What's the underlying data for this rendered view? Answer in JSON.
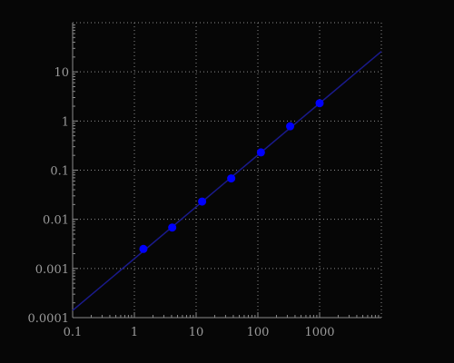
{
  "chart_data": {
    "type": "scatter",
    "title": "",
    "xlabel": "",
    "ylabel": "",
    "xscale": "log",
    "yscale": "log",
    "xlim": [
      0.1,
      10000
    ],
    "ylim": [
      0.0001,
      100
    ],
    "grid": true,
    "x_ticks": [
      {
        "value": 0.1,
        "label": "0.1"
      },
      {
        "value": 1,
        "label": "1"
      },
      {
        "value": 10,
        "label": "10"
      },
      {
        "value": 100,
        "label": "100"
      },
      {
        "value": 1000,
        "label": "1000"
      }
    ],
    "y_ticks": [
      {
        "value": 0.0001,
        "label": "0.0001"
      },
      {
        "value": 0.001,
        "label": "0.001"
      },
      {
        "value": 0.01,
        "label": "0.01"
      },
      {
        "value": 0.1,
        "label": "0.1"
      },
      {
        "value": 1,
        "label": "1"
      },
      {
        "value": 10,
        "label": "10"
      }
    ],
    "series": [
      {
        "type": "scatter",
        "color": "#0000ff",
        "x": [
          1.4,
          4.1,
          12.5,
          37,
          112,
          333,
          1000
        ],
        "y": [
          0.0025,
          0.0068,
          0.023,
          0.068,
          0.23,
          0.78,
          2.3
        ]
      },
      {
        "type": "line",
        "color": "#1a1a8c",
        "x": [
          0.1,
          10000
        ],
        "y": [
          0.00014,
          26
        ]
      }
    ]
  }
}
